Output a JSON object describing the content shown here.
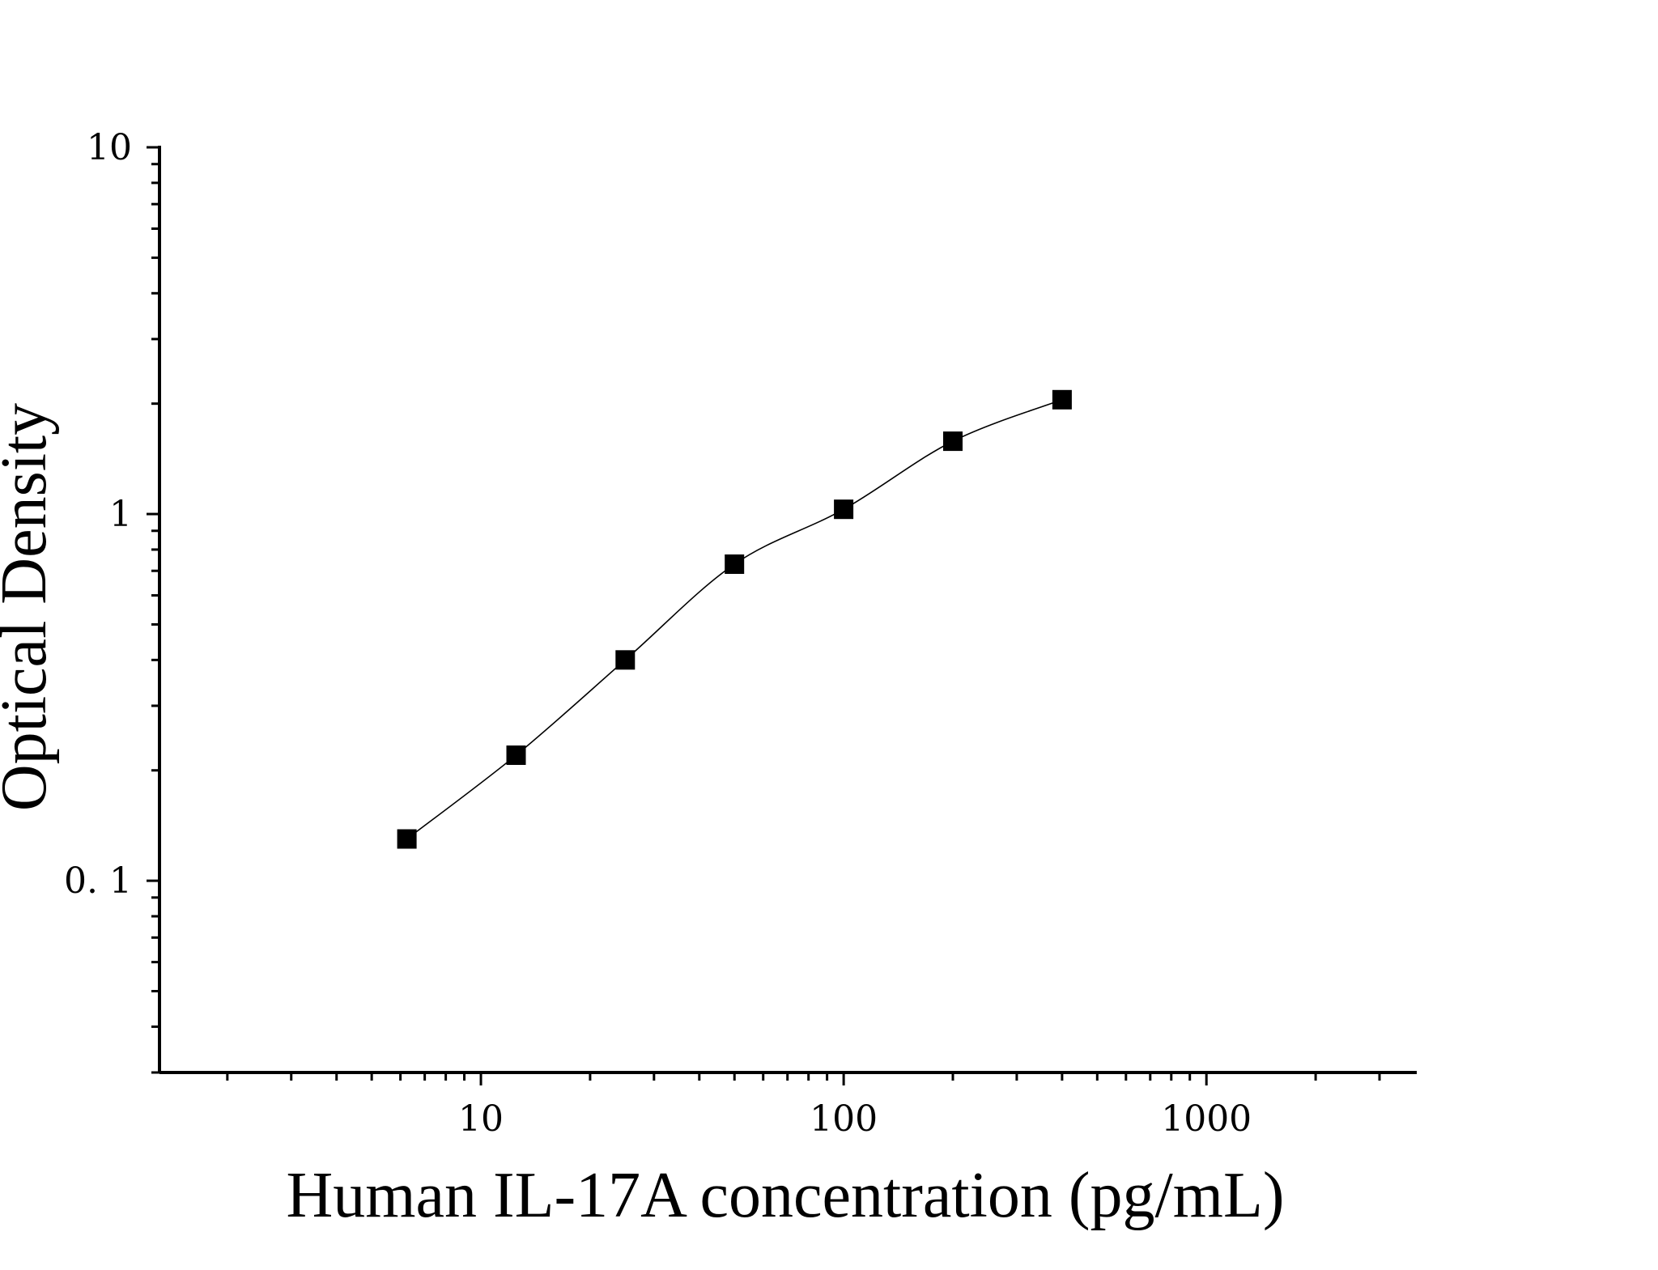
{
  "chart_data": {
    "type": "scatter",
    "title": "",
    "xlabel": "Human IL-17A concentration (pg/mL)",
    "ylabel": "Optical Density",
    "x_scale": "log",
    "y_scale": "log",
    "xlim": [
      1.3,
      3800
    ],
    "ylim": [
      0.03,
      10
    ],
    "x_ticks": [
      {
        "value": 10,
        "label": "10"
      },
      {
        "value": 100,
        "label": "100"
      },
      {
        "value": 1000,
        "label": "1000"
      }
    ],
    "y_ticks": [
      {
        "value": 0.1,
        "label": "0. 1"
      },
      {
        "value": 1,
        "label": "1"
      },
      {
        "value": 10,
        "label": "10"
      }
    ],
    "grid": false,
    "legend": "none",
    "marker": "square",
    "fit_line": "smooth",
    "series": [
      {
        "x": [
          6.25,
          12.5,
          25,
          50,
          100,
          200,
          400
        ],
        "y": [
          0.13,
          0.22,
          0.4,
          0.73,
          1.03,
          1.58,
          2.05
        ]
      }
    ]
  }
}
